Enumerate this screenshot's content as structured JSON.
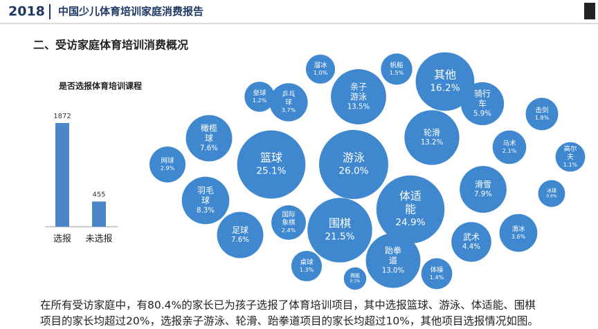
{
  "header": {
    "year": "2018",
    "title": "中国少儿体育培训家庭消费报告"
  },
  "section_title": "二、受访家庭体育培训消费概况",
  "chart_data": [
    {
      "type": "bar",
      "title": "是否选报体育培训课程",
      "categories": [
        "选报",
        "未选报"
      ],
      "values": [
        1872,
        455
      ],
      "color": "#4a86c8"
    },
    {
      "type": "bubble",
      "color": "#3f88cf",
      "categories": [
        "网球",
        "橄榄球",
        "羽毛球",
        "足球",
        "乒乓球",
        "垒球",
        "溜冰",
        "帆船",
        "其他",
        "亲子游泳",
        "篮球",
        "游泳",
        "轮滑",
        "骑行车",
        "击剑",
        "马术",
        "高尔夫",
        "滑雪",
        "体适能",
        "围棋",
        "国际象棋",
        "冰球",
        "滑冰",
        "武术",
        "跆拳道",
        "桌球",
        "赛艇",
        "体操"
      ],
      "values": [
        2.9,
        7.6,
        8.3,
        7.6,
        3.7,
        1.2,
        1.0,
        1.5,
        16.2,
        13.5,
        25.1,
        26.0,
        13.2,
        5.9,
        1.8,
        2.1,
        1.1,
        7.9,
        24.9,
        21.5,
        2.4,
        0.6,
        3.6,
        4.4,
        13.0,
        1.3,
        0.1,
        1.4
      ],
      "value_labels": [
        "2.9%",
        "7.6%",
        "8.3%",
        "7.6%",
        "3.7%",
        "1.2%",
        "1.0%",
        "1.5%",
        "16.2%",
        "13.5%",
        "25.1%",
        "26.0%",
        "13.2%",
        "5.9%",
        "1.8%",
        "2.1%",
        "1.1%",
        "7.9%",
        "24.9%",
        "21.5%",
        "2.4%",
        "0.6%",
        "3.6%",
        "4.4%",
        "13.0%",
        "1.3%",
        "0.1%",
        "1.4%"
      ]
    }
  ],
  "paragraph": [
    "在所有受访家庭中，有80.4%的家长已为孩子选报了体育培训项目，其中选报篮球、游泳、体适能、围棋",
    "项目的家长均超过20%，选报亲子游泳、轮滑、跆拳道项目的家长均超过10%，其他项目选报情况如图。"
  ]
}
